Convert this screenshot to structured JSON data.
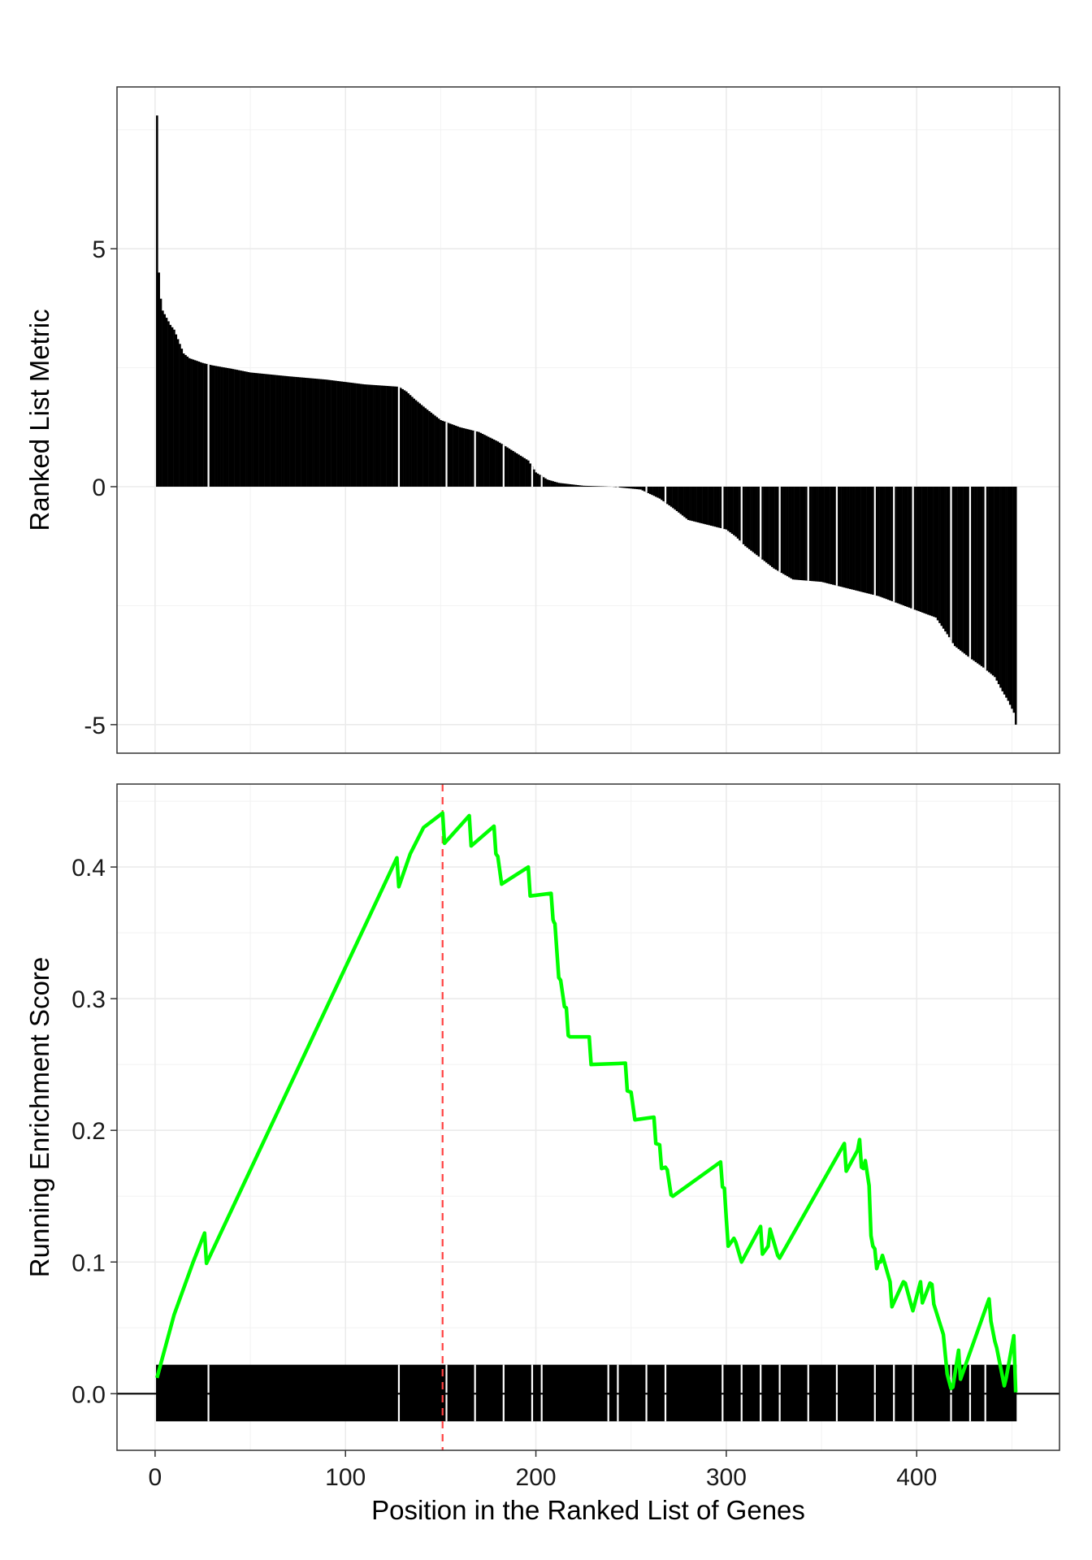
{
  "chart_data": [
    {
      "type": "bar",
      "panel": "ranked-list-metric",
      "ylabel": "Ranked List Metric",
      "xlim": [
        -20,
        475
      ],
      "ylim": [
        -5.6,
        8.4
      ],
      "grid": true,
      "yticks": [
        -5,
        0,
        5
      ],
      "ytick_labels": [
        "-5",
        "0",
        "5"
      ],
      "xticks": [
        0,
        100,
        200,
        300,
        400
      ],
      "n_genes": 452,
      "value_curve_knots": [
        [
          1,
          7.8
        ],
        [
          2,
          4.5
        ],
        [
          3,
          3.95
        ],
        [
          4,
          3.7
        ],
        [
          6,
          3.55
        ],
        [
          8,
          3.4
        ],
        [
          10,
          3.3
        ],
        [
          12,
          3.1
        ],
        [
          15,
          2.8
        ],
        [
          18,
          2.7
        ],
        [
          25,
          2.6
        ],
        [
          30,
          2.55
        ],
        [
          40,
          2.48
        ],
        [
          50,
          2.4
        ],
        [
          70,
          2.32
        ],
        [
          90,
          2.25
        ],
        [
          110,
          2.15
        ],
        [
          128,
          2.1
        ],
        [
          132,
          2.0
        ],
        [
          136,
          1.85
        ],
        [
          142,
          1.65
        ],
        [
          150,
          1.4
        ],
        [
          160,
          1.25
        ],
        [
          170,
          1.15
        ],
        [
          180,
          0.95
        ],
        [
          190,
          0.7
        ],
        [
          196,
          0.55
        ],
        [
          200,
          0.3
        ],
        [
          206,
          0.15
        ],
        [
          212,
          0.08
        ],
        [
          225,
          0.02
        ],
        [
          240,
          0.0
        ],
        [
          255,
          -0.06
        ],
        [
          265,
          -0.25
        ],
        [
          272,
          -0.45
        ],
        [
          280,
          -0.7
        ],
        [
          290,
          -0.8
        ],
        [
          300,
          -0.9
        ],
        [
          305,
          -1.05
        ],
        [
          310,
          -1.25
        ],
        [
          318,
          -1.5
        ],
        [
          325,
          -1.72
        ],
        [
          335,
          -1.95
        ],
        [
          350,
          -2.0
        ],
        [
          360,
          -2.1
        ],
        [
          370,
          -2.2
        ],
        [
          380,
          -2.3
        ],
        [
          390,
          -2.45
        ],
        [
          400,
          -2.6
        ],
        [
          410,
          -2.75
        ],
        [
          416,
          -3.1
        ],
        [
          420,
          -3.35
        ],
        [
          428,
          -3.6
        ],
        [
          435,
          -3.8
        ],
        [
          441,
          -4.0
        ],
        [
          445,
          -4.3
        ],
        [
          448,
          -4.5
        ],
        [
          451,
          -4.75
        ],
        [
          452,
          -5.0
        ]
      ],
      "white_gap_positions": [
        28,
        128,
        153,
        168,
        183,
        198,
        203,
        238,
        243,
        258,
        268,
        298,
        308,
        318,
        328,
        343,
        358,
        378,
        388,
        398,
        418,
        428,
        436
      ]
    },
    {
      "type": "line",
      "panel": "running-enrichment-score",
      "xlabel": "Position in the Ranked List of Genes",
      "ylabel": "Running Enrichment Score",
      "xlim": [
        -20,
        475
      ],
      "ylim": [
        -0.043,
        0.463
      ],
      "grid": true,
      "xticks": [
        0,
        100,
        200,
        300,
        400
      ],
      "xtick_labels": [
        "0",
        "100",
        "200",
        "300",
        "400"
      ],
      "yticks": [
        0.0,
        0.1,
        0.2,
        0.3,
        0.4
      ],
      "ytick_labels": [
        "0.0",
        "0.1",
        "0.2",
        "0.3",
        "0.4"
      ],
      "series_color": "#00ff00",
      "max_position": 151,
      "max_line_color": "#ff4040",
      "hit_band": [
        -0.021,
        0.022
      ],
      "hit_gap_positions": [
        28,
        128,
        153,
        168,
        183,
        198,
        203,
        238,
        243,
        258,
        268,
        298,
        308,
        318,
        328,
        343,
        358,
        378,
        388,
        398,
        418,
        428,
        436
      ],
      "x": [
        1,
        10,
        20,
        26,
        27,
        127,
        128,
        134,
        141,
        151,
        152,
        165,
        166,
        178,
        179,
        180,
        182,
        196,
        197,
        208,
        209,
        209.5,
        210,
        212,
        213,
        215,
        216,
        217,
        218,
        228,
        229,
        247,
        248,
        250,
        252,
        262,
        263,
        265,
        266,
        268,
        269,
        271,
        272,
        297,
        298,
        299,
        300,
        301,
        304,
        305,
        306,
        307,
        308,
        318,
        319,
        322,
        323,
        327,
        328,
        362,
        363,
        369,
        370,
        371,
        372,
        373,
        375,
        376,
        377,
        378,
        379,
        380,
        381,
        382,
        383,
        386,
        387,
        393,
        394,
        397,
        398,
        402,
        403,
        407,
        408,
        409,
        414,
        415,
        416,
        418,
        419,
        422,
        423,
        438,
        439,
        441,
        442,
        446,
        447,
        451,
        452
      ],
      "values": [
        0.012,
        0.06,
        0.1,
        0.122,
        0.099,
        0.407,
        0.385,
        0.41,
        0.43,
        0.441,
        0.418,
        0.439,
        0.416,
        0.431,
        0.41,
        0.408,
        0.387,
        0.4,
        0.378,
        0.38,
        0.36,
        0.358,
        0.357,
        0.316,
        0.314,
        0.294,
        0.293,
        0.272,
        0.271,
        0.271,
        0.25,
        0.251,
        0.23,
        0.229,
        0.208,
        0.21,
        0.19,
        0.189,
        0.171,
        0.172,
        0.17,
        0.151,
        0.15,
        0.176,
        0.157,
        0.156,
        0.133,
        0.112,
        0.118,
        0.115,
        0.11,
        0.105,
        0.1,
        0.127,
        0.106,
        0.112,
        0.125,
        0.105,
        0.103,
        0.19,
        0.169,
        0.185,
        0.193,
        0.172,
        0.171,
        0.177,
        0.158,
        0.12,
        0.112,
        0.11,
        0.095,
        0.1,
        0.1,
        0.105,
        0.1,
        0.085,
        0.066,
        0.085,
        0.084,
        0.068,
        0.063,
        0.085,
        0.069,
        0.084,
        0.083,
        0.068,
        0.045,
        0.03,
        0.015,
        0.004,
        0.005,
        0.033,
        0.011,
        0.072,
        0.055,
        0.04,
        0.035,
        0.006,
        0.012,
        0.044,
        0.001
      ]
    }
  ]
}
